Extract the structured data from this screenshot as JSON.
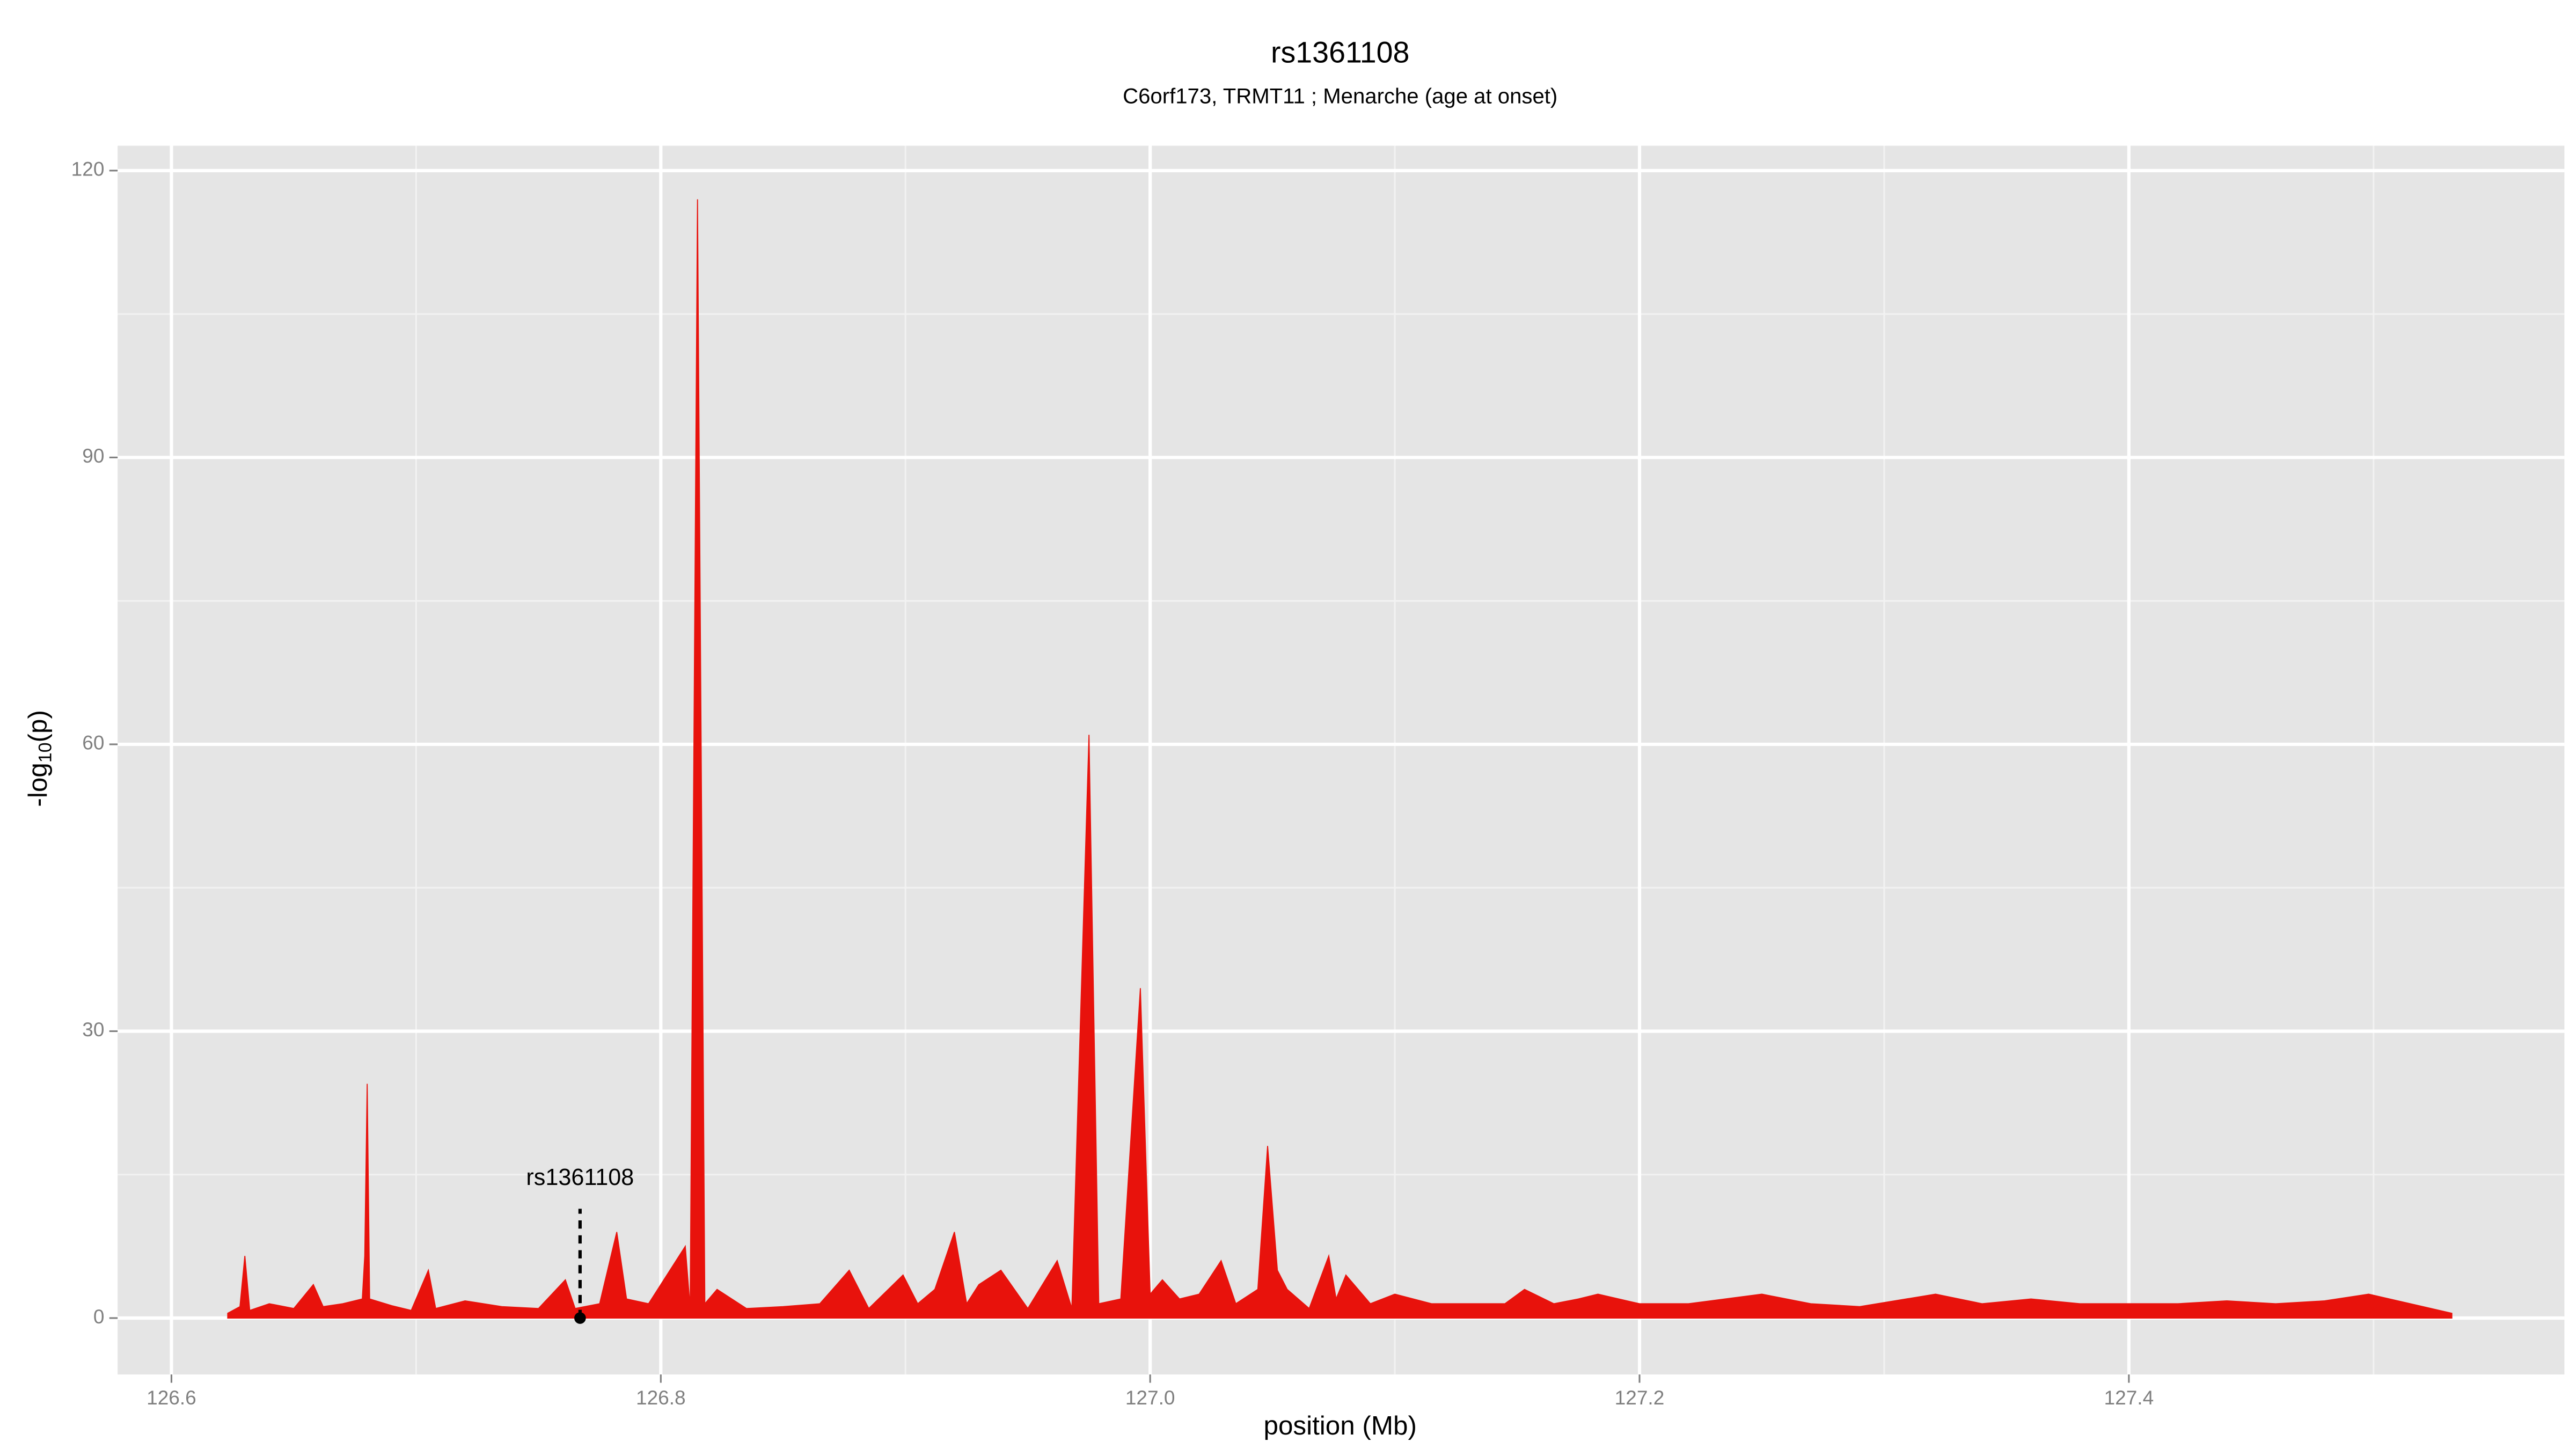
{
  "chart_data": {
    "type": "area",
    "title": "rs1361108",
    "subtitle": "C6orf173, TRMT11 ; Menarche (age at onset)",
    "xlabel": "position (Mb)",
    "ylabel": [
      "-log",
      "10",
      "(p)"
    ],
    "x": [
      126.623,
      126.628,
      126.63,
      126.632,
      126.64,
      126.65,
      126.658,
      126.662,
      126.67,
      126.678,
      126.679,
      126.68,
      126.681,
      126.69,
      126.698,
      126.705,
      126.708,
      126.72,
      126.735,
      126.75,
      126.761,
      126.765,
      126.775,
      126.782,
      126.786,
      126.795,
      126.81,
      126.812,
      126.815,
      126.818,
      126.823,
      126.835,
      126.85,
      126.865,
      126.877,
      126.885,
      126.899,
      126.905,
      126.912,
      126.92,
      126.925,
      126.93,
      126.939,
      126.95,
      126.962,
      126.968,
      126.975,
      126.979,
      126.988,
      126.996,
      127.0,
      127.005,
      127.012,
      127.02,
      127.029,
      127.035,
      127.044,
      127.048,
      127.052,
      127.056,
      127.065,
      127.073,
      127.076,
      127.08,
      127.09,
      127.1,
      127.115,
      127.13,
      127.145,
      127.153,
      127.165,
      127.175,
      127.183,
      127.2,
      127.22,
      127.25,
      127.27,
      127.29,
      127.321,
      127.34,
      127.36,
      127.38,
      127.4,
      127.42,
      127.44,
      127.46,
      127.48,
      127.498,
      127.515,
      127.532
    ],
    "series": [
      {
        "color": "#e8120c",
        "values": [
          0.5,
          1.2,
          6.5,
          0.8,
          1.5,
          1.0,
          3.5,
          1.2,
          1.5,
          2.0,
          6.5,
          24.5,
          2.0,
          1.3,
          0.8,
          5.0,
          1.0,
          1.8,
          1.2,
          1.0,
          4.0,
          1.0,
          1.5,
          9.0,
          2.0,
          1.5,
          7.5,
          1.0,
          117,
          1.5,
          3.0,
          1.0,
          1.2,
          1.5,
          5.0,
          1.0,
          4.5,
          1.5,
          3.0,
          9.0,
          1.5,
          3.5,
          5.0,
          1.0,
          6.0,
          1.0,
          61,
          1.5,
          2.0,
          34.5,
          2.5,
          4.0,
          2.0,
          2.5,
          6.0,
          1.5,
          3.0,
          18,
          5.0,
          3.0,
          1.0,
          6.5,
          2.0,
          4.5,
          1.5,
          2.5,
          1.5,
          1.5,
          1.5,
          3.0,
          1.5,
          2.0,
          2.5,
          1.5,
          1.5,
          2.5,
          1.5,
          1.2,
          2.5,
          1.5,
          2.0,
          1.5,
          1.5,
          1.5,
          1.8,
          1.5,
          1.8,
          2.5,
          1.5,
          0.5
        ]
      }
    ],
    "xlim": [
      126.578,
      127.578
    ],
    "ylim": [
      -5.9,
      122.6
    ],
    "xticks": [
      126.6,
      126.8,
      {
        "value": 127,
        "label": "127.0"
      },
      127.2,
      127.4
    ],
    "x_minor_ticks": [
      126.7,
      126.9,
      127.1,
      127.3,
      127.5
    ],
    "yticks": [
      0,
      30,
      60,
      90,
      120
    ],
    "y_minor_ticks": [
      15,
      45,
      75,
      105
    ],
    "grid": true,
    "panel_color": "#e5e5e5",
    "annotation": {
      "label": "rs1361108",
      "x": 126.767,
      "y": 0
    }
  }
}
